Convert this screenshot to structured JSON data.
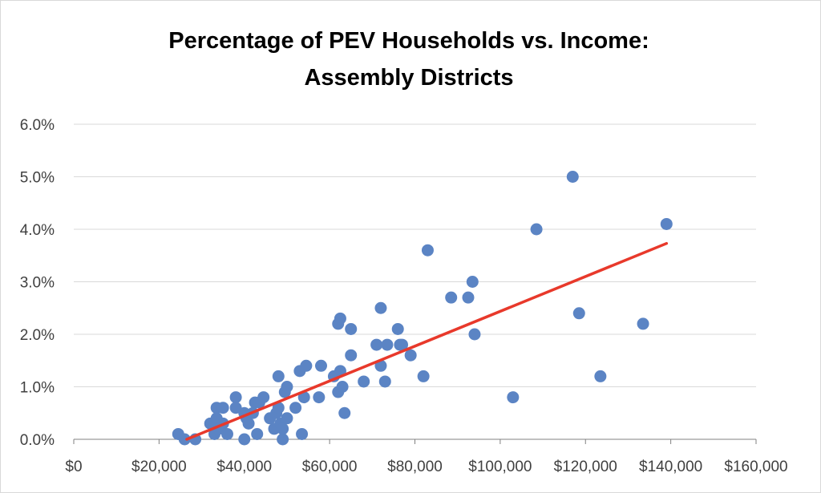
{
  "chart_data": {
    "type": "scatter",
    "title": "Percentage of PEV Households vs. Income:",
    "subtitle": "Assembly Districts",
    "xlabel": "",
    "ylabel": "",
    "xlim": [
      0,
      160000
    ],
    "ylim": [
      0,
      0.06
    ],
    "x_ticks": [
      0,
      20000,
      40000,
      60000,
      80000,
      100000,
      120000,
      140000,
      160000
    ],
    "x_tick_labels": [
      "$0",
      "$20,000",
      "$40,000",
      "$60,000",
      "$80,000",
      "$100,000",
      "$120,000",
      "$140,000",
      "$160,000"
    ],
    "y_ticks": [
      0,
      0.01,
      0.02,
      0.03,
      0.04,
      0.05,
      0.06
    ],
    "y_tick_labels": [
      "0.0%",
      "1.0%",
      "2.0%",
      "3.0%",
      "4.0%",
      "5.0%",
      "6.0%"
    ],
    "grid": "horizontal",
    "legend": "none",
    "colors": {
      "points": "#5b84c4",
      "trendline": "#e8392b",
      "grid": "#d9d9d9",
      "axis": "#808080"
    },
    "series": [
      {
        "marker": "circle",
        "points": [
          [
            24500,
            0.001
          ],
          [
            26000,
            0.0
          ],
          [
            28500,
            0.0
          ],
          [
            32000,
            0.003
          ],
          [
            33000,
            0.001
          ],
          [
            33500,
            0.004
          ],
          [
            33500,
            0.006
          ],
          [
            34000,
            0.002
          ],
          [
            35000,
            0.003
          ],
          [
            35000,
            0.006
          ],
          [
            36000,
            0.001
          ],
          [
            38000,
            0.008
          ],
          [
            38000,
            0.006
          ],
          [
            40000,
            0.005
          ],
          [
            40000,
            0.0
          ],
          [
            40500,
            0.004
          ],
          [
            41000,
            0.003
          ],
          [
            42000,
            0.005
          ],
          [
            42500,
            0.007
          ],
          [
            43000,
            0.001
          ],
          [
            43500,
            0.007
          ],
          [
            44500,
            0.008
          ],
          [
            46000,
            0.004
          ],
          [
            47000,
            0.002
          ],
          [
            47500,
            0.005
          ],
          [
            48000,
            0.012
          ],
          [
            48000,
            0.006
          ],
          [
            48500,
            0.003
          ],
          [
            49000,
            0.0
          ],
          [
            49000,
            0.002
          ],
          [
            49500,
            0.009
          ],
          [
            50000,
            0.004
          ],
          [
            50000,
            0.01
          ],
          [
            52000,
            0.006
          ],
          [
            53000,
            0.013
          ],
          [
            53500,
            0.001
          ],
          [
            54000,
            0.008
          ],
          [
            54500,
            0.014
          ],
          [
            57500,
            0.008
          ],
          [
            58000,
            0.014
          ],
          [
            61000,
            0.012
          ],
          [
            62000,
            0.009
          ],
          [
            62000,
            0.022
          ],
          [
            62500,
            0.023
          ],
          [
            62500,
            0.013
          ],
          [
            63000,
            0.01
          ],
          [
            63500,
            0.005
          ],
          [
            65000,
            0.016
          ],
          [
            65000,
            0.021
          ],
          [
            68000,
            0.011
          ],
          [
            71000,
            0.018
          ],
          [
            72000,
            0.014
          ],
          [
            72000,
            0.025
          ],
          [
            73000,
            0.011
          ],
          [
            73500,
            0.018
          ],
          [
            76000,
            0.021
          ],
          [
            76500,
            0.018
          ],
          [
            77000,
            0.018
          ],
          [
            79000,
            0.016
          ],
          [
            82000,
            0.012
          ],
          [
            83000,
            0.036
          ],
          [
            88500,
            0.027
          ],
          [
            92500,
            0.027
          ],
          [
            93500,
            0.03
          ],
          [
            94000,
            0.02
          ],
          [
            103000,
            0.008
          ],
          [
            108500,
            0.04
          ],
          [
            117000,
            0.05
          ],
          [
            118500,
            0.024
          ],
          [
            123500,
            0.012
          ],
          [
            133500,
            0.022
          ],
          [
            139000,
            0.041
          ]
        ]
      }
    ],
    "trendline": {
      "x": [
        26500,
        139000
      ],
      "y": [
        0.0,
        0.0373
      ]
    }
  }
}
